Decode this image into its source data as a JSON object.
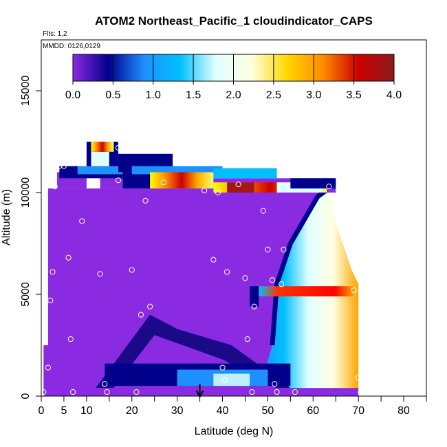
{
  "chart_data": {
    "type": "heatmap",
    "title": "ATOM2 Northeast_Pacific_1 cloudindicator_CAPS",
    "flights_label": "Flts: 1,2",
    "dates_label": "MMDD: 0126,0129",
    "xlabel": "Latitude (deg N)",
    "ylabel": "Altitude (m)",
    "xlim": [
      0,
      85
    ],
    "ylim": [
      0,
      17500
    ],
    "x_ticks": [
      0,
      5,
      10,
      20,
      30,
      40,
      50,
      60,
      70,
      80
    ],
    "x_minor_ticks": [
      15,
      25,
      35,
      45,
      55,
      65,
      75,
      85
    ],
    "y_ticks": [
      0,
      5000,
      10000,
      15000
    ],
    "colorbar": {
      "min": 0.0,
      "max": 4.0,
      "ticks": [
        "0.0",
        "0.5",
        "1.0",
        "1.5",
        "2.0",
        "2.5",
        "3.0",
        "3.5",
        "4.0"
      ],
      "colors": [
        "#8a2be2",
        "#00008b",
        "#1e90ff",
        "#00bfff",
        "#e0ffff",
        "#ffffe0",
        "#ffd700",
        "#ff8c00",
        "#cc0000",
        "#8b1a1a"
      ]
    },
    "background_value": 0.0,
    "regions": [
      {
        "name": "main column",
        "x": [
          1.5,
          63
        ],
        "y": [
          0,
          10200
        ],
        "value": 0.0
      },
      {
        "name": "east column",
        "x": [
          63,
          70
        ],
        "y": [
          0,
          10200
        ],
        "value": 1.8
      },
      {
        "name": "upper cloud band",
        "x": [
          38,
          63
        ],
        "y": [
          10000,
          10500
        ],
        "value": 3.6
      },
      {
        "name": "mid-level cloud band",
        "x": [
          47,
          70
        ],
        "y": [
          4800,
          5400
        ],
        "value": 3.4
      },
      {
        "name": "low cloud band",
        "x": [
          12,
          55
        ],
        "y": [
          500,
          1500
        ],
        "value": 1.3
      },
      {
        "name": "top cloud cap",
        "x": [
          10,
          17
        ],
        "y": [
          11000,
          12500
        ],
        "value": 2.4
      }
    ],
    "flight_sample_points": [
      [
        0.5,
        200
      ],
      [
        1.5,
        1400
      ],
      [
        2,
        4700
      ],
      [
        2.5,
        6100
      ],
      [
        3,
        10300
      ],
      [
        4,
        11300
      ],
      [
        5,
        11300
      ],
      [
        6,
        6800
      ],
      [
        6.5,
        2800
      ],
      [
        7,
        200
      ],
      [
        9,
        8600
      ],
      [
        13,
        6000
      ],
      [
        14,
        600
      ],
      [
        14.5,
        200
      ],
      [
        17,
        12200
      ],
      [
        17.5,
        12500
      ],
      [
        17,
        10600
      ],
      [
        20,
        6200
      ],
      [
        21,
        200
      ],
      [
        22,
        4000
      ],
      [
        23,
        9600
      ],
      [
        24,
        4400
      ],
      [
        27,
        10500
      ],
      [
        36,
        10100
      ],
      [
        38,
        6700
      ],
      [
        39,
        10000
      ],
      [
        40,
        1400
      ],
      [
        40.5,
        800
      ],
      [
        41,
        6100
      ],
      [
        43.5,
        10400
      ],
      [
        45,
        5800
      ],
      [
        45.5,
        2800
      ],
      [
        46.5,
        200
      ],
      [
        47,
        4400
      ],
      [
        49,
        9100
      ],
      [
        50,
        7200
      ],
      [
        51,
        5700
      ],
      [
        51.5,
        600
      ],
      [
        52,
        200
      ],
      [
        53,
        5500
      ],
      [
        53.5,
        7200
      ],
      [
        56,
        200
      ],
      [
        63.5,
        10300
      ],
      [
        69,
        5200
      ],
      [
        70,
        900
      ],
      [
        70.5,
        200
      ]
    ],
    "annotation_arrow_x": 35
  }
}
